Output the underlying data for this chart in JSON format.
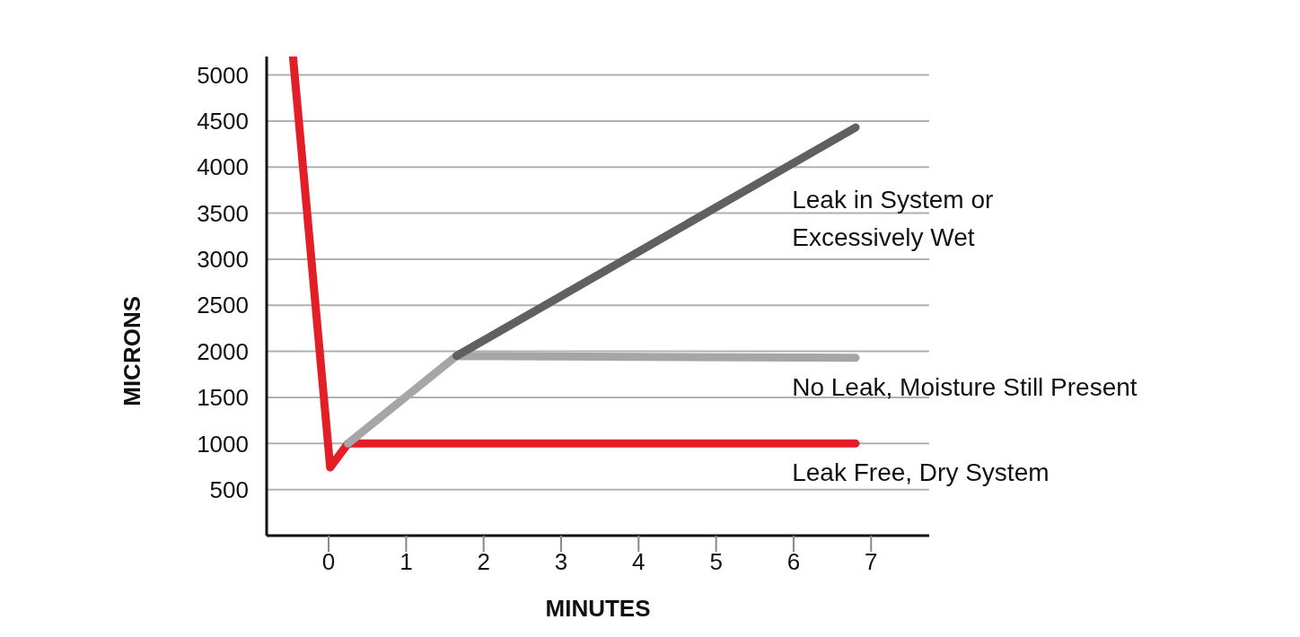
{
  "chart_data": {
    "type": "line",
    "xlabel": "MINUTES",
    "ylabel": "MICRONS",
    "xlim": [
      -0.8,
      7.75
    ],
    "xticks": [
      0,
      1,
      2,
      3,
      4,
      5,
      6,
      7
    ],
    "ylim": [
      0,
      5200
    ],
    "yticks": [
      500,
      1000,
      1500,
      2000,
      2500,
      3000,
      3500,
      4000,
      4500,
      5000
    ],
    "grid": "y",
    "marker": "none",
    "line_style": "solid",
    "series": [
      {
        "name": "Leak in System or Excessively Wet",
        "color": "#606060",
        "x": [
          1.65,
          6.8
        ],
        "values": [
          1950,
          4430
        ]
      },
      {
        "name": "No Leak, Moisture Still Present",
        "color": "#a6a6a6",
        "x": [
          0.25,
          1.65,
          6.8
        ],
        "values": [
          1000,
          1950,
          1930
        ]
      },
      {
        "name": "Leak Free, Dry System",
        "color": "#e41e26",
        "x": [
          -0.46,
          0.02,
          0.25,
          6.8
        ],
        "values": [
          5200,
          740,
          1000,
          1000
        ]
      }
    ]
  }
}
